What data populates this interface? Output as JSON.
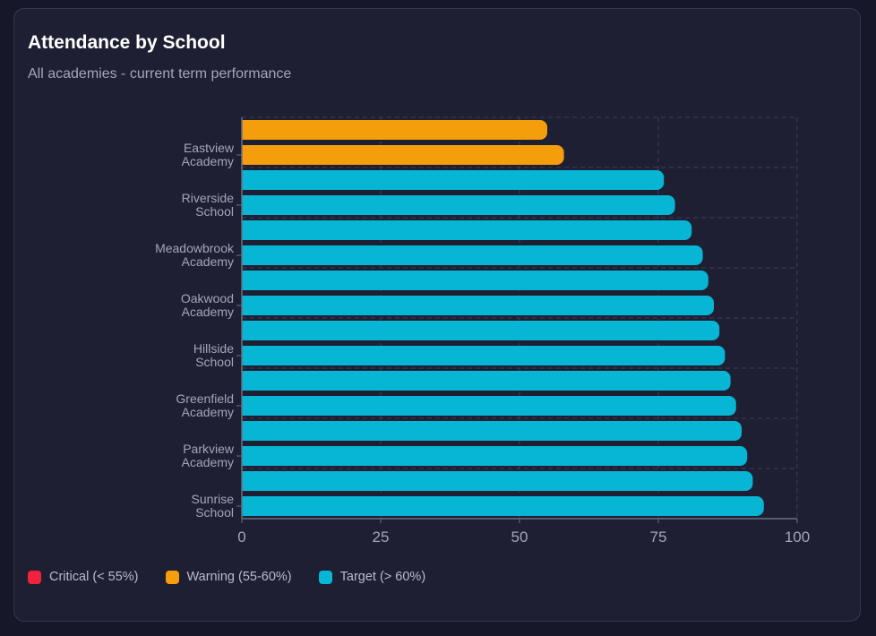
{
  "header": {
    "title": "Attendance by School",
    "subtitle": "All academies - current term performance"
  },
  "colors": {
    "critical": "#ef233c",
    "warning": "#f59e0b",
    "target": "#06b6d4",
    "grid": "#3d3e58",
    "axis": "#6b6e85"
  },
  "legend": [
    {
      "label": "Critical (< 55%)",
      "color": "#ef233c"
    },
    {
      "label": "Warning (55-60%)",
      "color": "#f59e0b"
    },
    {
      "label": "Target (> 60%)",
      "color": "#06b6d4"
    }
  ],
  "chart_data": {
    "type": "bar",
    "orientation": "horizontal",
    "categories": [
      "",
      "Eastview Academy",
      "",
      "Riverside School",
      "",
      "Meadowbrook Academy",
      "",
      "Oakwood Academy",
      "",
      "Hillside School",
      "",
      "Greenfield Academy",
      "",
      "Parkview Academy",
      "",
      "Sunrise School"
    ],
    "values": [
      55,
      58,
      76,
      78,
      81,
      83,
      84,
      85,
      86,
      87,
      88,
      89,
      90,
      91,
      92,
      94
    ],
    "bar_status": [
      "warning",
      "warning",
      "target",
      "target",
      "target",
      "target",
      "target",
      "target",
      "target",
      "target",
      "target",
      "target",
      "target",
      "target",
      "target",
      "target"
    ],
    "xlim": [
      0,
      100
    ],
    "xticks": [
      "0",
      "25",
      "50",
      "75",
      "100"
    ],
    "grid": true,
    "legend_position": "bottom-left"
  }
}
